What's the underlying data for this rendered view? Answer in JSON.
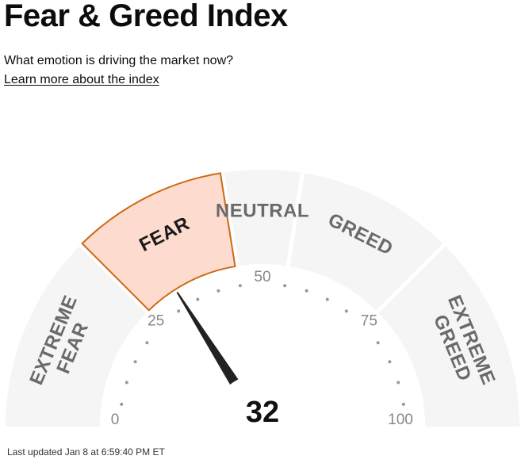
{
  "page": {
    "title": "Fear & Greed Index",
    "subtitle": "What emotion is driving the market now?",
    "learn_more": "Learn more about the index",
    "last_updated": "Last updated Jan 8 at 6:59:40 PM ET"
  },
  "gauge": {
    "value": 32,
    "value_label": "32",
    "scale_min": 0,
    "scale_max": 100,
    "active_segment": "fear",
    "segments": [
      {
        "id": "extreme-fear",
        "lines": [
          "EXTREME",
          "FEAR"
        ],
        "from": 0,
        "to": 25
      },
      {
        "id": "fear",
        "lines": [
          "FEAR"
        ],
        "from": 25,
        "to": 45
      },
      {
        "id": "neutral",
        "lines": [
          "NEUTRAL"
        ],
        "from": 45,
        "to": 55
      },
      {
        "id": "greed",
        "lines": [
          "GREED"
        ],
        "from": 55,
        "to": 75
      },
      {
        "id": "extreme-greed",
        "lines": [
          "EXTREME",
          "GREED"
        ],
        "from": 75,
        "to": 100
      }
    ],
    "tick_labels": [
      "0",
      "25",
      "50",
      "75",
      "100"
    ],
    "colors": {
      "segment_fill": "#f5f5f5",
      "active_fill": "#fddccf",
      "active_stroke": "#cc6a14",
      "segment_text": "#6a6a6a",
      "active_text": "#1a1a1a",
      "tick_text": "#888888",
      "dot": "#999999",
      "needle": "#222222",
      "hub": "#ffffff",
      "value_text": "#111111"
    }
  }
}
